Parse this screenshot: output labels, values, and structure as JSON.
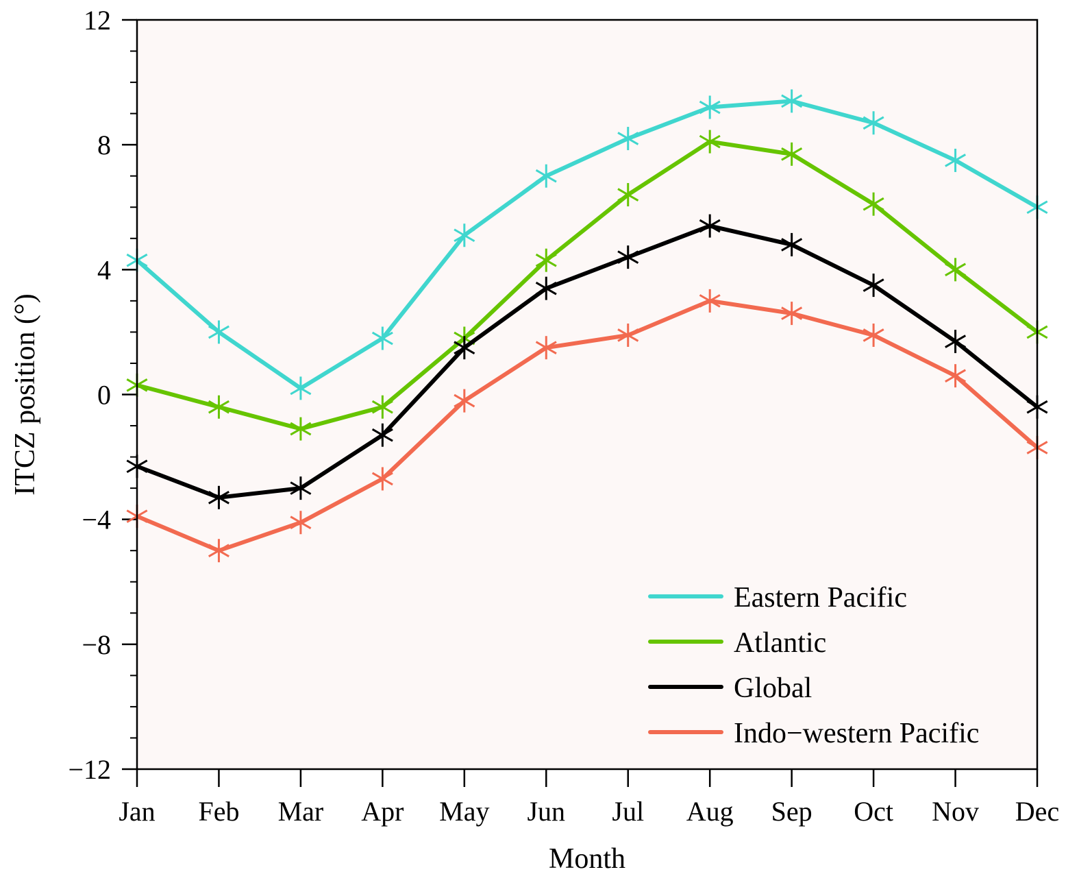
{
  "chart_data": {
    "type": "line",
    "xlabel": "Month",
    "ylabel": "ITCZ position (°)",
    "categories": [
      "Jan",
      "Feb",
      "Mar",
      "Apr",
      "May",
      "Jun",
      "Jul",
      "Aug",
      "Sep",
      "Oct",
      "Nov",
      "Dec"
    ],
    "ylim": [
      -12,
      12
    ],
    "yticks": [
      12,
      8,
      4,
      0,
      -4,
      -8,
      -12
    ],
    "ytick_labels": [
      "12",
      "8",
      "4",
      "0",
      "−4",
      "−8",
      "−12"
    ],
    "y_minor_step": 1,
    "grid": false,
    "background": "#fdf8f7",
    "marker": "asterisk",
    "legend_position": "bottom-right",
    "series": [
      {
        "name": "Eastern Pacific",
        "color": "#40d6ce",
        "values": [
          4.3,
          2.0,
          0.2,
          1.8,
          5.1,
          7.0,
          8.2,
          9.2,
          9.4,
          8.7,
          7.5,
          6.0
        ]
      },
      {
        "name": "Atlantic",
        "color": "#66c400",
        "values": [
          0.3,
          -0.4,
          -1.1,
          -0.4,
          1.8,
          4.3,
          6.4,
          8.1,
          7.7,
          6.1,
          4.0,
          2.0
        ]
      },
      {
        "name": "Global",
        "color": "#000000",
        "values": [
          -2.3,
          -3.3,
          -3.0,
          -1.3,
          1.5,
          3.4,
          4.4,
          5.4,
          4.8,
          3.5,
          1.7,
          -0.4
        ]
      },
      {
        "name": "Indo−western Pacific",
        "color": "#f26a50",
        "values": [
          -3.9,
          -5.0,
          -4.1,
          -2.7,
          -0.2,
          1.5,
          1.9,
          3.0,
          2.6,
          1.9,
          0.6,
          -1.7
        ]
      }
    ]
  }
}
